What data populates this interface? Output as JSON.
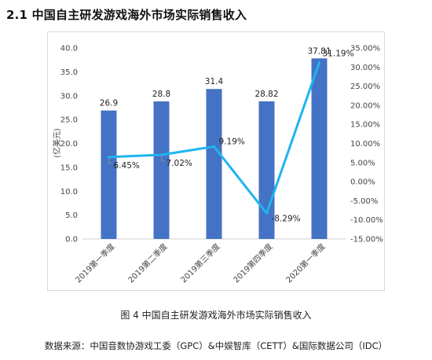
{
  "heading": "2.1  中国自主研发游戏海外市场实际销售收入",
  "caption": "图 4  中国自主研发游戏海外市场实际销售收入",
  "source": "数据来源：中国音数协游戏工委（GPC）&中娱智库（CETT）&国际数据公司（IDC）",
  "chart_data": {
    "type": "bar",
    "categories": [
      "2019第一季度",
      "2019第二季度",
      "2019第三季度",
      "2019第四季度",
      "2020第一季度"
    ],
    "series": [
      {
        "type": "bar",
        "values": [
          26.9,
          28.8,
          31.4,
          28.82,
          37.81
        ],
        "color": "#4472c4",
        "axis": "left",
        "labels": [
          "26.9",
          "28.8",
          "31.4",
          "28.82",
          "37.81"
        ]
      },
      {
        "type": "line",
        "values": [
          6.45,
          7.02,
          9.19,
          -8.29,
          31.19
        ],
        "color": "#1fb4f0",
        "axis": "right",
        "labels": [
          "6.45%",
          "7.02%",
          "9.19%",
          "-8.29%",
          "31.19%"
        ]
      }
    ],
    "ylabel": "(亿美元)",
    "ylim": [
      0,
      40
    ],
    "yticks": [
      "0.0",
      "5.0",
      "10.0",
      "15.0",
      "20.0",
      "25.0",
      "30.0",
      "35.0",
      "40.0"
    ],
    "y2lim": [
      -15,
      35
    ],
    "y2ticks": [
      "-15.00%",
      "-10.00%",
      "-5.00%",
      "0.00%",
      "5.00%",
      "10.00%",
      "15.00%",
      "20.00%",
      "25.00%",
      "30.00%",
      "35.00%"
    ],
    "grid": false,
    "legend": "none"
  }
}
